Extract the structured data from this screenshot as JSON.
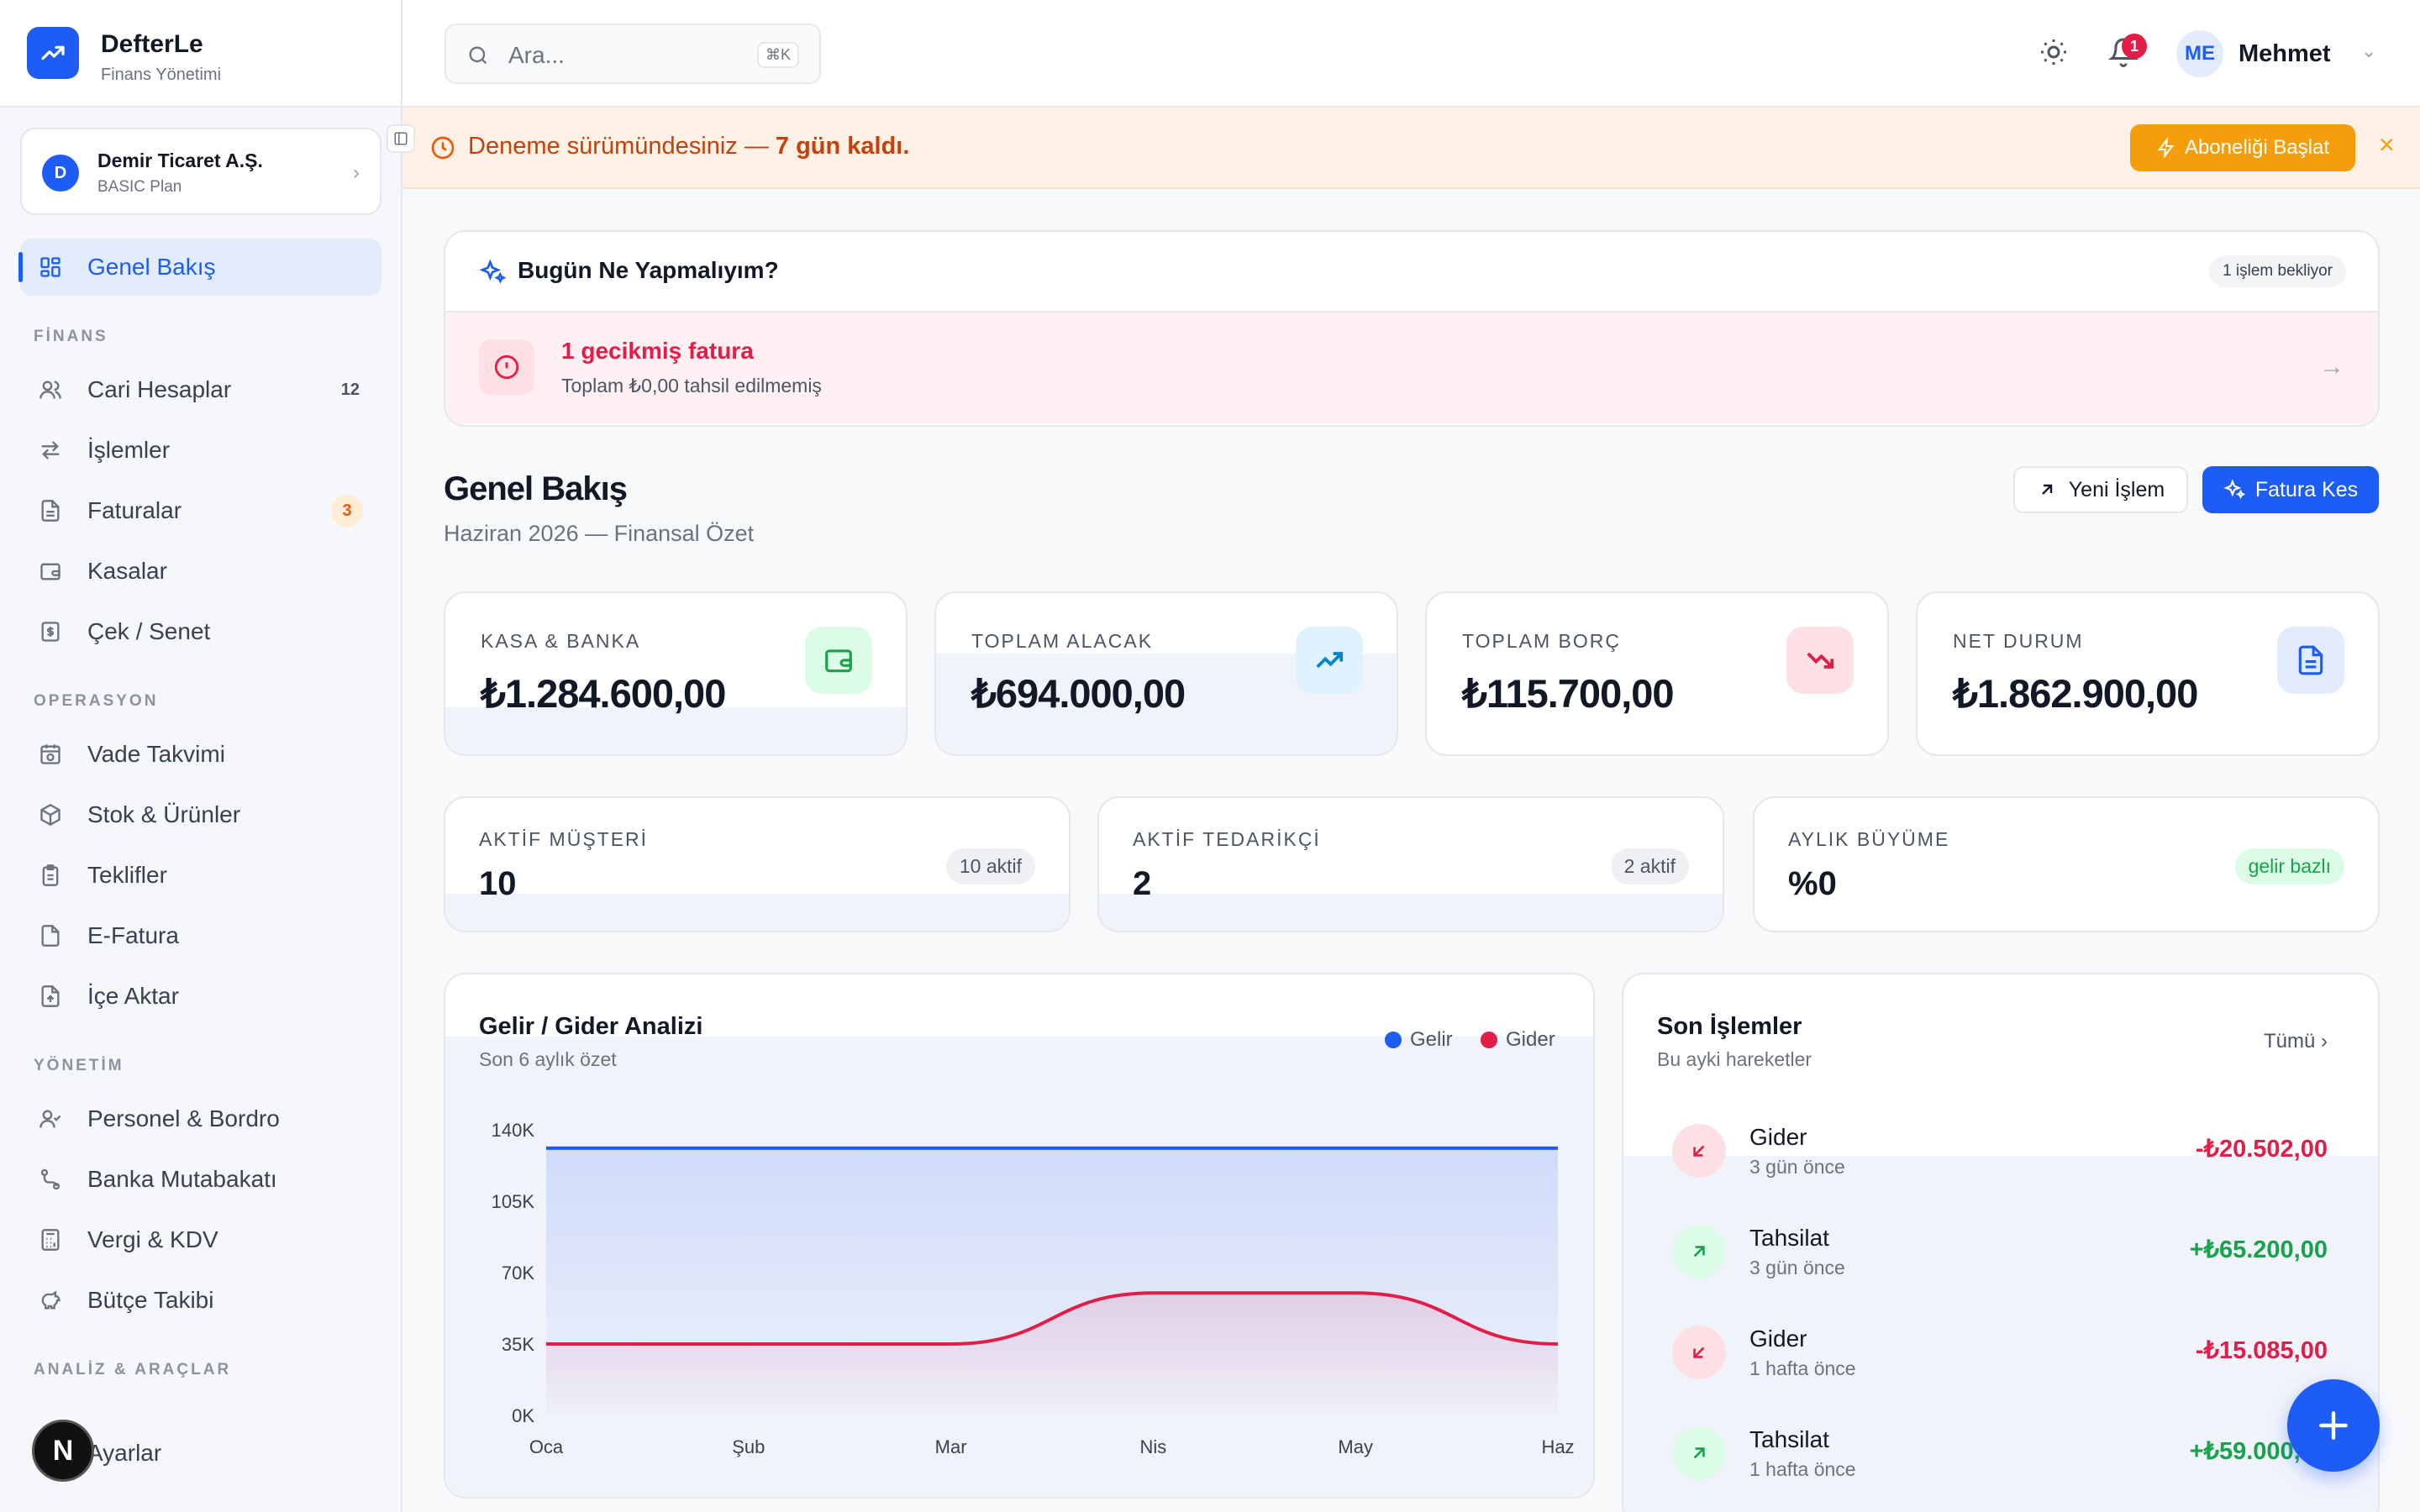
{
  "brand": {
    "name": "DefterLe",
    "subtitle": "Finans Yönetimi"
  },
  "company": {
    "initial": "D",
    "name": "Demir Ticaret A.Ş.",
    "plan": "BASIC Plan"
  },
  "nav": {
    "overview": "Genel Bakış",
    "sections": {
      "finance": "FİNANS",
      "operations": "OPERASYON",
      "management": "YÖNETİM",
      "analysis": "ANALİZ & ARAÇLAR"
    },
    "finance": [
      {
        "label": "Cari Hesaplar",
        "count": "12"
      },
      {
        "label": "İşlemler"
      },
      {
        "label": "Faturalar",
        "count": "3"
      },
      {
        "label": "Kasalar"
      },
      {
        "label": "Çek / Senet"
      }
    ],
    "operations": [
      {
        "label": "Vade Takvimi"
      },
      {
        "label": "Stok & Ürünler"
      },
      {
        "label": "Teklifler"
      },
      {
        "label": "E-Fatura"
      },
      {
        "label": "İçe Aktar"
      }
    ],
    "management": [
      {
        "label": "Personel & Bordro"
      },
      {
        "label": "Banka Mutabakatı"
      },
      {
        "label": "Vergi & KDV"
      },
      {
        "label": "Bütçe Takibi"
      }
    ],
    "settings": "Ayarlar"
  },
  "dev_badge": "N",
  "topbar": {
    "search_placeholder": "Ara...",
    "search_shortcut": "⌘K",
    "notification_count": "1",
    "user_initials": "ME",
    "user_name": "Mehmet"
  },
  "trial": {
    "text": "Deneme sürümündesiniz — ",
    "highlight": "7 gün kaldı.",
    "button": "Aboneliği Başlat"
  },
  "todo": {
    "title": "Bugün Ne Yapmalıyım?",
    "badge": "1 işlem bekliyor",
    "item_title": "1 gecikmiş fatura",
    "item_sub": "Toplam ₺0,00 tahsil edilmemiş"
  },
  "page": {
    "title": "Genel Bakış",
    "subtitle": "Haziran 2026 — Finansal Özet",
    "new_tx_button": "Yeni İşlem",
    "invoice_button": "Fatura Kes"
  },
  "stats": [
    {
      "label": "KASA & BANKA",
      "value": "₺1.284.600,00"
    },
    {
      "label": "TOPLAM ALACAK",
      "value": "₺694.000,00"
    },
    {
      "label": "TOPLAM BORÇ",
      "value": "₺115.700,00"
    },
    {
      "label": "NET DURUM",
      "value": "₺1.862.900,00"
    }
  ],
  "mini_stats": [
    {
      "label": "AKTİF MÜŞTERİ",
      "value": "10",
      "pill": "10 aktif"
    },
    {
      "label": "AKTİF TEDARİKÇİ",
      "value": "2",
      "pill": "2 aktif"
    },
    {
      "label": "AYLIK BÜYÜME",
      "value": "%0",
      "pill": "gelir bazlı"
    }
  ],
  "chart": {
    "title": "Gelir / Gider Analizi",
    "subtitle": "Son 6 aylık özet"
  },
  "chart_data": {
    "type": "area",
    "categories": [
      "Oca",
      "Şub",
      "Mar",
      "Nis",
      "May",
      "Haz"
    ],
    "series": [
      {
        "name": "Gelir",
        "values": [
          131000,
          131000,
          131000,
          131000,
          131000,
          131000
        ],
        "color": "#1d5cf5"
      },
      {
        "name": "Gider",
        "values": [
          35000,
          35000,
          35000,
          60000,
          60000,
          35000
        ],
        "color": "#e11d48"
      }
    ],
    "yticks": [
      "140K",
      "105K",
      "70K",
      "35K",
      "0K"
    ],
    "ylim": [
      0,
      140000
    ],
    "grid": false,
    "legend": "top-right"
  },
  "recent": {
    "title": "Son İşlemler",
    "subtitle": "Bu ayki hareketler",
    "all_link": "Tümü",
    "items": [
      {
        "title": "Gider",
        "time": "3 gün önce",
        "amount": "-₺20.502,00",
        "kind": "out"
      },
      {
        "title": "Tahsilat",
        "time": "3 gün önce",
        "amount": "+₺65.200,00",
        "kind": "in"
      },
      {
        "title": "Gider",
        "time": "1 hafta önce",
        "amount": "-₺15.085,00",
        "kind": "out"
      },
      {
        "title": "Tahsilat",
        "time": "1 hafta önce",
        "amount": "+₺59.000,00",
        "kind": "in"
      }
    ]
  },
  "colors": {
    "primary": "#1d5cf5",
    "danger": "#e11d48",
    "success": "#16a34a",
    "warning": "#f59e0b"
  }
}
